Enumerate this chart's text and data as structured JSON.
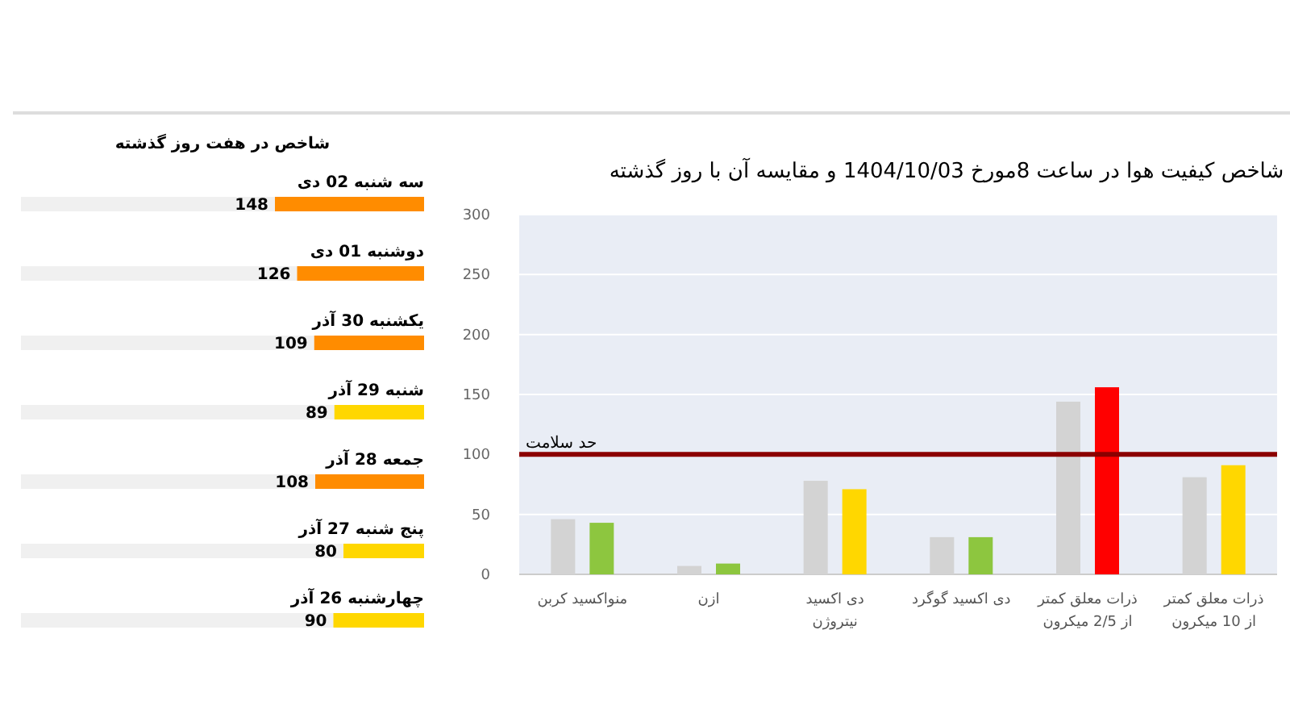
{
  "chart_data": [
    {
      "type": "bar",
      "title": "شاخص در هفت روز گذشته",
      "orientation": "horizontal",
      "categories": [
        "سه شنبه 02 دی",
        "دوشنبه 01 دی",
        "یکشنبه 30 آذر",
        "شنبه 29 آذر",
        "جمعه 28 آذر",
        "پنج شنبه 27 آذر",
        "چهارشنبه 26 آذر"
      ],
      "values": [
        148,
        126,
        109,
        89,
        108,
        80,
        90
      ],
      "colors": [
        "#ff8c00",
        "#ff8c00",
        "#ff8c00",
        "#ffd700",
        "#ff8c00",
        "#ffd700",
        "#ffd700"
      ],
      "xlim": [
        400,
        0
      ],
      "data_labels": true,
      "tick_labels": false
    },
    {
      "type": "bar",
      "title": "شاخص کیفیت هوا در ساعت 8مورخ 1404/10/03 و مقایسه آن با روز گذشته",
      "categories": [
        "منواکسید کربن",
        "ازن",
        "دی اکسید نیتروژن",
        "دی اکسید گوگرد",
        "ذرات معلق کمتر از 2/5 میکرون",
        "ذرات معلق کمتر از 10 میکرون"
      ],
      "series": [
        {
          "color": "#d3d3d3",
          "values": [
            46,
            7,
            78,
            31,
            144,
            81
          ]
        },
        {
          "colors": [
            "#8dc63f",
            "#8dc63f",
            "#ffd700",
            "#8dc63f",
            "#ff0000",
            "#ffd700"
          ],
          "values": [
            43,
            9,
            71,
            31,
            156,
            91
          ]
        }
      ],
      "ylim": [
        0,
        300
      ],
      "yticks": [
        0,
        50,
        100,
        150,
        200,
        250,
        300
      ],
      "grid": "y",
      "ref_lines": [
        {
          "axis": "y",
          "value": 100,
          "label": "حد سلامت",
          "color": "#8b0000"
        }
      ]
    }
  ]
}
